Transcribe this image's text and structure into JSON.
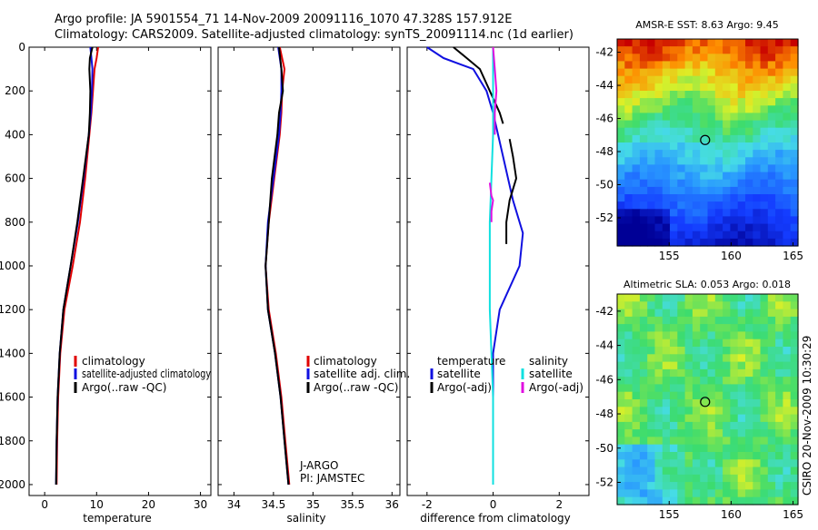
{
  "header": {
    "line1": "Argo profile: JA 5901554_71 14-Nov-2009 20091116_1070 47.328S 157.912E",
    "line2": "Climatology: CARS2009. Satellite-adjusted climatology: synTS_20091114.nc (1d earlier)"
  },
  "colors": {
    "climatology": "#e00000",
    "satellite": "#1010e0",
    "argo": "#000000",
    "satellite_diff": "#10e0e0",
    "argo_diff_sal": "#e010e0"
  },
  "footer": {
    "credit": "CSIRO 20-Nov-2009 10:30:29"
  },
  "annotation": {
    "line1": "J-ARGO",
    "line2": "PI: JAMSTEC"
  },
  "chart_data": [
    {
      "type": "line",
      "xlabel": "temperature",
      "ylim": [
        2050,
        0
      ],
      "xlim": [
        -3,
        32
      ],
      "xticks": [
        "0",
        "10",
        "20",
        "30"
      ],
      "yticks": [
        "0",
        "200",
        "400",
        "600",
        "800",
        "1000",
        "1200",
        "1400",
        "1600",
        "1800",
        "2000"
      ],
      "legend": [
        "climatology",
        "satellite-adjusted climatology",
        "Argo(..raw -QC)"
      ],
      "series": [
        {
          "name": "climatology",
          "depth": [
            0,
            50,
            100,
            200,
            300,
            400,
            600,
            800,
            1000,
            1200,
            1400,
            1600,
            1800,
            2000
          ],
          "values": [
            10.3,
            10.0,
            9.6,
            9.3,
            9.0,
            8.6,
            7.8,
            6.8,
            5.4,
            3.8,
            3.0,
            2.6,
            2.4,
            2.3
          ]
        },
        {
          "name": "satellite-adjusted climatology",
          "depth": [
            0,
            50,
            100,
            200,
            300,
            400,
            600,
            800,
            1000,
            1200,
            1400,
            1600,
            1800,
            2000
          ],
          "values": [
            8.8,
            9.0,
            9.2,
            9.1,
            8.9,
            8.5,
            7.5,
            6.4,
            5.0,
            3.6,
            2.9,
            2.5,
            2.3,
            2.2
          ]
        },
        {
          "name": "Argo(..raw -QC)",
          "depth": [
            0,
            50,
            100,
            200,
            300,
            400,
            600,
            800,
            1000,
            1200,
            1400,
            1600,
            1800,
            2000
          ],
          "values": [
            9.2,
            8.7,
            8.6,
            8.8,
            8.7,
            8.5,
            7.4,
            6.3,
            5.0,
            3.6,
            2.9,
            2.5,
            2.3,
            2.2
          ]
        }
      ]
    },
    {
      "type": "line",
      "xlabel": "salinity",
      "ylim": [
        2050,
        0
      ],
      "xlim": [
        33.8,
        36.1
      ],
      "xticks": [
        "34",
        "34.5",
        "35",
        "35.5",
        "36"
      ],
      "legend": [
        "climatology",
        "satellite adj. clim.",
        "Argo(..raw -QC)"
      ],
      "series": [
        {
          "name": "climatology",
          "depth": [
            0,
            100,
            200,
            300,
            400,
            600,
            800,
            1000,
            1200,
            1400,
            1600,
            1800,
            2000
          ],
          "values": [
            34.58,
            34.64,
            34.61,
            34.6,
            34.58,
            34.51,
            34.44,
            34.4,
            34.44,
            34.53,
            34.6,
            34.65,
            34.7
          ]
        },
        {
          "name": "satellite adj. clim.",
          "depth": [
            0,
            100,
            200,
            300,
            400,
            600,
            800,
            1000,
            1200,
            1400,
            1600,
            1800,
            2000
          ],
          "values": [
            34.56,
            34.6,
            34.6,
            34.59,
            34.57,
            34.5,
            34.43,
            34.4,
            34.43,
            34.52,
            34.59,
            34.64,
            34.69
          ]
        },
        {
          "name": "Argo(..raw -QC)",
          "depth": [
            0,
            100,
            200,
            300,
            400,
            600,
            700,
            800,
            1000,
            1200,
            1400,
            1600,
            1800,
            2000
          ],
          "values": [
            34.57,
            34.6,
            34.62,
            34.57,
            34.55,
            34.48,
            34.46,
            34.44,
            34.4,
            34.43,
            34.52,
            34.59,
            34.64,
            34.69
          ]
        }
      ]
    },
    {
      "type": "line",
      "xlabel": "difference from climatology",
      "ylim": [
        2050,
        0
      ],
      "xlim": [
        -2.6,
        2.9
      ],
      "xticks": [
        "-2",
        "0",
        "2"
      ],
      "legend_left": {
        "title": "temperature",
        "items": [
          "satellite",
          "Argo(-adj)"
        ]
      },
      "legend_right": {
        "title": "salinity",
        "items": [
          "satellite",
          "Argo(-adj)"
        ]
      },
      "series": [
        {
          "name": "temperature satellite",
          "depth": [
            0,
            50,
            100,
            200,
            300,
            500,
            700,
            850,
            1000,
            1200,
            1400,
            1600,
            1800,
            2000
          ],
          "values": [
            -2.0,
            -1.5,
            -0.6,
            -0.2,
            0.0,
            0.3,
            0.6,
            0.9,
            0.8,
            0.2,
            0.0,
            0.0,
            0.0,
            0.0
          ]
        },
        {
          "name": "temperature Argo(-adj)",
          "depth": [
            0,
            50,
            100,
            200,
            300,
            350
          ],
          "values": [
            -1.2,
            -0.8,
            -0.4,
            -0.1,
            0.2,
            0.3
          ]
        },
        {
          "name": "temperature Argo(-adj) deep",
          "depth": [
            420,
            500,
            600,
            700,
            800,
            900
          ],
          "values": [
            0.5,
            0.6,
            0.7,
            0.5,
            0.4,
            0.4
          ]
        },
        {
          "name": "salinity satellite",
          "depth": [
            0,
            100,
            200,
            400,
            600,
            800,
            1000,
            1200,
            1400,
            1600,
            1800,
            2000
          ],
          "values": [
            0.0,
            0.0,
            0.0,
            0.0,
            -0.05,
            -0.1,
            -0.1,
            -0.1,
            -0.05,
            0.0,
            0.0,
            0.0
          ]
        },
        {
          "name": "salinity Argo(-adj)",
          "depth": [
            0,
            100,
            200,
            300,
            400
          ],
          "values": [
            0.0,
            0.05,
            0.1,
            0.05,
            0.05
          ]
        },
        {
          "name": "salinity Argo(-adj) deep",
          "depth": [
            620,
            680,
            700,
            750,
            800
          ],
          "values": [
            -0.1,
            -0.05,
            0.0,
            -0.05,
            -0.05
          ]
        }
      ]
    },
    {
      "type": "heatmap",
      "title": "AMSR-E SST: 8.63  Argo: 9.45",
      "xticks": [
        "155",
        "160",
        "165"
      ],
      "yticks": [
        "-42",
        "-44",
        "-46",
        "-48",
        "-50",
        "-52"
      ],
      "xlim": [
        150.8,
        165.4
      ],
      "ylim": [
        -53.7,
        -41.2
      ],
      "marker": {
        "lon": 157.9,
        "lat": -47.3
      }
    },
    {
      "type": "heatmap",
      "title": "Altimetric SLA: 0.053  Argo: 0.018",
      "xticks": [
        "155",
        "160",
        "165"
      ],
      "yticks": [
        "-42",
        "-44",
        "-46",
        "-48",
        "-50",
        "-52"
      ],
      "xlim": [
        150.8,
        165.4
      ],
      "ylim": [
        -53.3,
        -41.0
      ],
      "marker": {
        "lon": 157.9,
        "lat": -47.3
      }
    }
  ]
}
